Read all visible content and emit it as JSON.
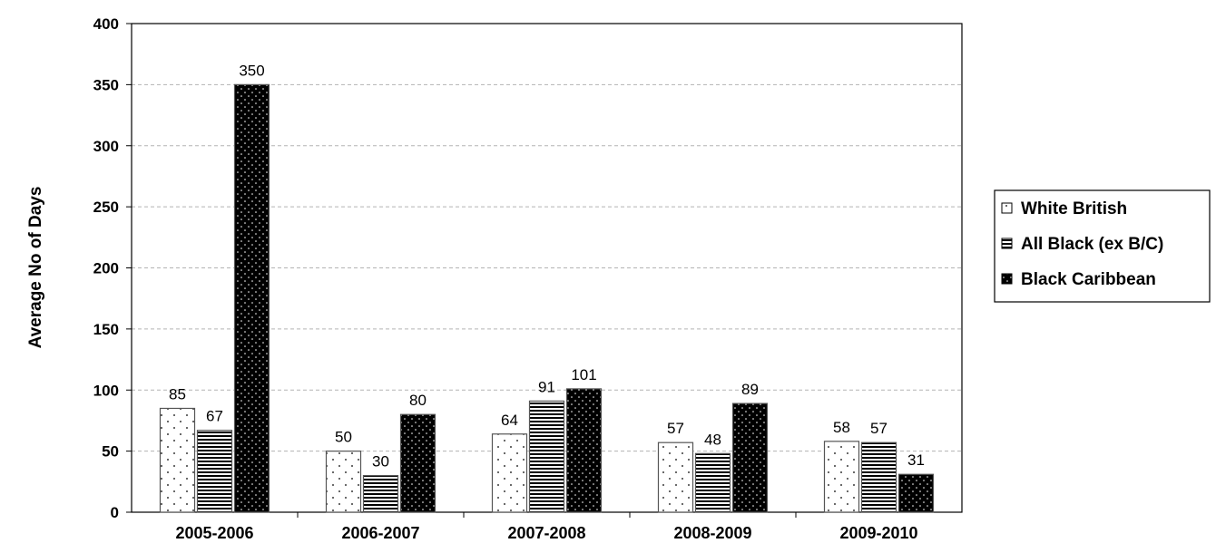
{
  "chart_data": {
    "type": "bar",
    "title": "",
    "xlabel": "",
    "ylabel": "Average No of Days",
    "ylim": [
      0,
      400
    ],
    "yticks": [
      0,
      50,
      100,
      150,
      200,
      250,
      300,
      350,
      400
    ],
    "grid": true,
    "legend_position": "right",
    "categories": [
      "2005-2006",
      "2006-2007",
      "2007-2008",
      "2008-2009",
      "2009-2010"
    ],
    "series": [
      {
        "name": "White British",
        "values": [
          85,
          50,
          64,
          57,
          58
        ],
        "pattern": "sparse-dots-on-white"
      },
      {
        "name": "All Black (ex B/C)",
        "values": [
          67,
          30,
          91,
          48,
          57
        ],
        "pattern": "horizontal-lines"
      },
      {
        "name": "Black Caribbean",
        "values": [
          350,
          80,
          101,
          89,
          31
        ],
        "pattern": "dots-on-black"
      }
    ]
  }
}
